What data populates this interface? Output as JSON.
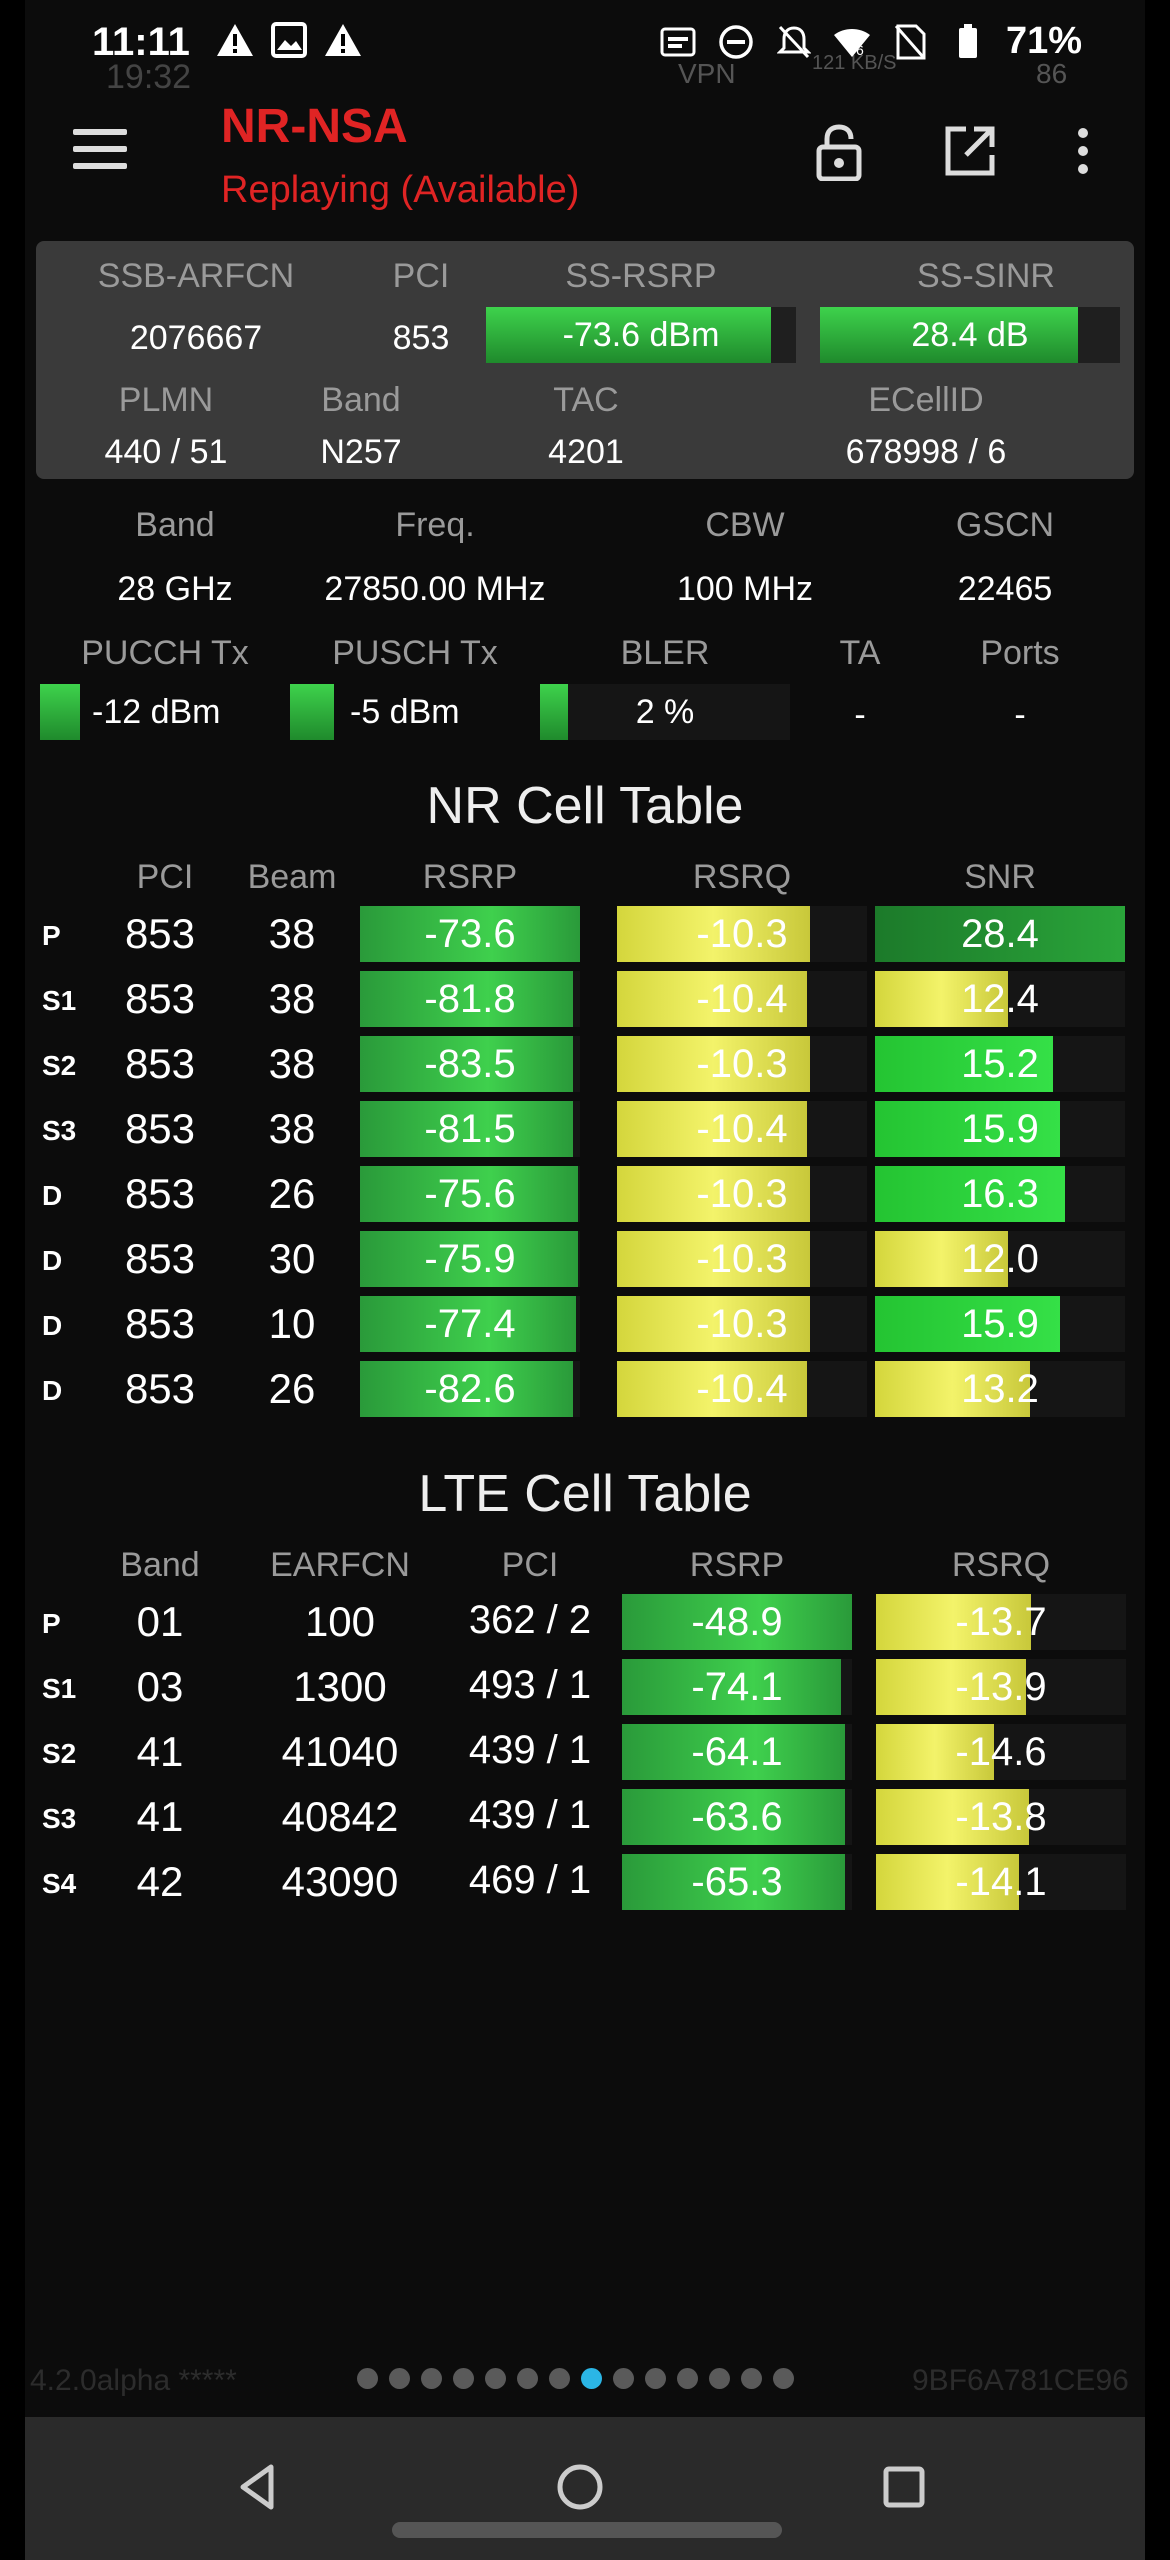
{
  "status_bar": {
    "time": "11:11",
    "ghost_time": "19:32",
    "battery": "71%",
    "ghost_vpn": "VPN",
    "ghost_speed": "121 KB/S",
    "ghost_batt": "86"
  },
  "toolbar": {
    "title": "NR-NSA",
    "subtitle": "Replaying (Available)",
    "icons": [
      "menu-icon",
      "lock-icon",
      "open-external-icon",
      "more-vert-icon"
    ]
  },
  "top_panel": {
    "labels": {
      "ssb_arfcn": "SSB-ARFCN",
      "pci": "PCI",
      "ss_rsrp": "SS-RSRP",
      "ss_sinr": "SS-SINR",
      "plmn": "PLMN",
      "band": "Band",
      "tac": "TAC",
      "ecellid": "ECellID"
    },
    "values": {
      "ssb_arfcn": "2076667",
      "pci": "853",
      "ss_rsrp": "-73.6 dBm",
      "ss_sinr": "28.4 dB",
      "plmn": "440 / 51",
      "band": "N257",
      "tac": "4201",
      "ecellid": "678998 / 6"
    },
    "ss_rsrp_level": 0.92,
    "ss_sinr_level": 0.86
  },
  "carrier": {
    "labels": {
      "band": "Band",
      "freq": "Freq.",
      "cbw": "CBW",
      "gscn": "GSCN",
      "pucch": "PUCCH Tx",
      "pusch": "PUSCH Tx",
      "bler": "BLER",
      "ta": "TA",
      "ports": "Ports"
    },
    "values": {
      "band": "28 GHz",
      "freq": "27850.00 MHz",
      "cbw": "100 MHz",
      "gscn": "22465",
      "pucch": "-12 dBm",
      "pusch": "-5 dBm",
      "bler": "2 %",
      "ta": "-",
      "ports": "-"
    }
  },
  "nr_table": {
    "title": "NR Cell Table",
    "headers": [
      "PCI",
      "Beam",
      "RSRP",
      "RSRQ",
      "SNR"
    ],
    "rows": [
      {
        "label": "P",
        "pci": "853",
        "beam": "38",
        "rsrp": "-73.6",
        "rsrq": "-10.3",
        "snr": "28.4",
        "rsrp_level": 1.0,
        "rsrq_level": 0.77,
        "snr_level": 1.0,
        "snr_color": "dgreen"
      },
      {
        "label": "S1",
        "pci": "853",
        "beam": "38",
        "rsrp": "-81.8",
        "rsrq": "-10.4",
        "snr": "12.4",
        "rsrp_level": 0.97,
        "rsrq_level": 0.76,
        "snr_level": 0.53,
        "snr_color": "yellow"
      },
      {
        "label": "S2",
        "pci": "853",
        "beam": "38",
        "rsrp": "-83.5",
        "rsrq": "-10.3",
        "snr": "15.2",
        "rsrp_level": 0.97,
        "rsrq_level": 0.77,
        "snr_level": 0.71,
        "snr_color": "lime"
      },
      {
        "label": "S3",
        "pci": "853",
        "beam": "38",
        "rsrp": "-81.5",
        "rsrq": "-10.4",
        "snr": "15.9",
        "rsrp_level": 0.97,
        "rsrq_level": 0.76,
        "snr_level": 0.74,
        "snr_color": "lime"
      },
      {
        "label": "D",
        "pci": "853",
        "beam": "26",
        "rsrp": "-75.6",
        "rsrq": "-10.3",
        "snr": "16.3",
        "rsrp_level": 0.99,
        "rsrq_level": 0.77,
        "snr_level": 0.76,
        "snr_color": "lime"
      },
      {
        "label": "D",
        "pci": "853",
        "beam": "30",
        "rsrp": "-75.9",
        "rsrq": "-10.3",
        "snr": "12.0",
        "rsrp_level": 0.99,
        "rsrq_level": 0.77,
        "snr_level": 0.53,
        "snr_color": "yellow"
      },
      {
        "label": "D",
        "pci": "853",
        "beam": "10",
        "rsrp": "-77.4",
        "rsrq": "-10.3",
        "snr": "15.9",
        "rsrp_level": 0.98,
        "rsrq_level": 0.77,
        "snr_level": 0.74,
        "snr_color": "lime"
      },
      {
        "label": "D",
        "pci": "853",
        "beam": "26",
        "rsrp": "-82.6",
        "rsrq": "-10.4",
        "snr": "13.2",
        "rsrp_level": 0.97,
        "rsrq_level": 0.76,
        "snr_level": 0.62,
        "snr_color": "yellow"
      }
    ]
  },
  "lte_table": {
    "title": "LTE Cell Table",
    "headers": [
      "Band",
      "EARFCN",
      "PCI",
      "RSRP",
      "RSRQ"
    ],
    "rows": [
      {
        "label": "P",
        "band": "01",
        "earfcn": "100",
        "pci": "362 / 2",
        "rsrp": "-48.9",
        "rsrq": "-13.7",
        "rsrp_level": 1.0,
        "rsrq_level": 0.62
      },
      {
        "label": "S1",
        "band": "03",
        "earfcn": "1300",
        "pci": "493 / 1",
        "rsrp": "-74.1",
        "rsrq": "-13.9",
        "rsrp_level": 0.95,
        "rsrq_level": 0.6
      },
      {
        "label": "S2",
        "band": "41",
        "earfcn": "41040",
        "pci": "439 / 1",
        "rsrp": "-64.1",
        "rsrq": "-14.6",
        "rsrp_level": 0.97,
        "rsrq_level": 0.47
      },
      {
        "label": "S3",
        "band": "41",
        "earfcn": "40842",
        "pci": "439 / 1",
        "rsrp": "-63.6",
        "rsrq": "-13.8",
        "rsrp_level": 0.97,
        "rsrq_level": 0.61
      },
      {
        "label": "S4",
        "band": "42",
        "earfcn": "43090",
        "pci": "469 / 1",
        "rsrp": "-65.3",
        "rsrq": "-14.1",
        "rsrp_level": 0.97,
        "rsrq_level": 0.57
      }
    ]
  },
  "footer": {
    "version": "4.2.0alpha *****",
    "device_id": "9BF6A781CE96",
    "page_count": 14,
    "active_page": 7
  },
  "colors": {
    "title": "#e02424",
    "panel": "#3a3a3a",
    "active_dot": "#2bb6e6"
  }
}
